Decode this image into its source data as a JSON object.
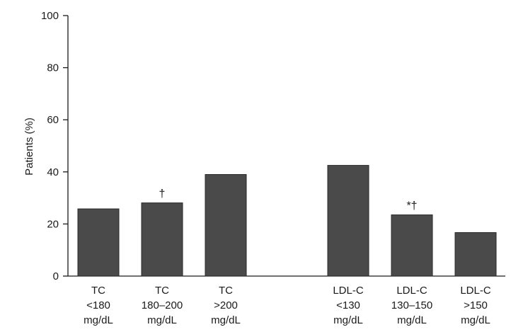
{
  "chart_data": {
    "type": "bar",
    "title": "",
    "xlabel": "",
    "ylabel": "Patients (%)",
    "ylim": [
      0,
      100
    ],
    "yticks": [
      0,
      20,
      40,
      60,
      80,
      100
    ],
    "grid": false,
    "bar_color": "#4a4a4a",
    "categories": [
      [
        "TC",
        "<180",
        "mg/dL"
      ],
      [
        "TC",
        "180–200",
        "mg/dL"
      ],
      [
        "TC",
        ">200",
        "mg/dL"
      ],
      [
        "LDL-C",
        "<130",
        "mg/dL"
      ],
      [
        "LDL-C",
        "130–150",
        "mg/dL"
      ],
      [
        "LDL-C",
        ">150",
        "mg/dL"
      ]
    ],
    "values": [
      25.8,
      28.1,
      39.0,
      42.5,
      23.5,
      16.7
    ],
    "annotations": [
      "",
      "†",
      "",
      "",
      "*†",
      ""
    ]
  }
}
